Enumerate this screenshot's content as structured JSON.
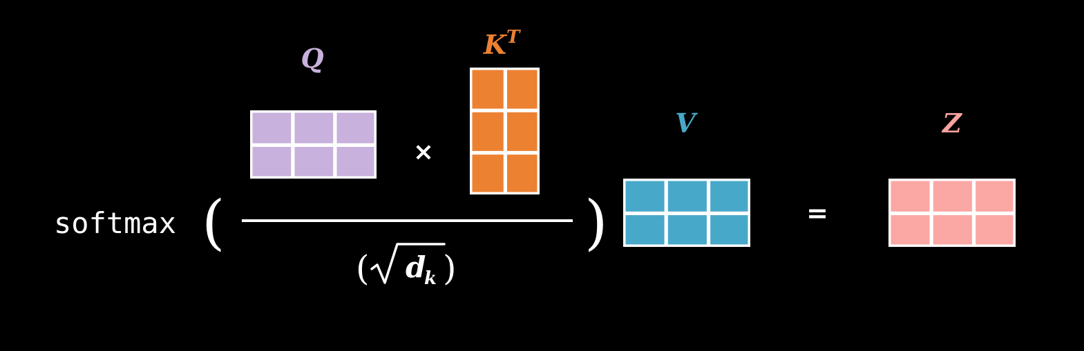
{
  "formula": {
    "function_name": "softmax",
    "open_paren": "(",
    "close_paren": ")",
    "multiply_symbol": "×",
    "equals_symbol": "=",
    "denominator": {
      "open_paren": "(",
      "radical": "√",
      "variable": "d",
      "subscript": "k",
      "close_paren": ")"
    }
  },
  "matrices": {
    "q": {
      "label": "Q",
      "superscript": "",
      "rows": 2,
      "cols": 3,
      "color": "#c8b1dc"
    },
    "k": {
      "label": "K",
      "superscript": "T",
      "rows": 3,
      "cols": 2,
      "color": "#ec8132"
    },
    "v": {
      "label": "V",
      "superscript": "",
      "rows": 2,
      "cols": 3,
      "color": "#48a8c9"
    },
    "z": {
      "label": "Z",
      "superscript": "",
      "rows": 2,
      "cols": 3,
      "color": "#fba7a4"
    }
  },
  "colors": {
    "background": "#000000",
    "foreground": "#ffffff",
    "label_q": "#c8b1dc",
    "label_k": "#ec8132",
    "label_v": "#48a8c9",
    "label_z": "#f7a3a0"
  }
}
